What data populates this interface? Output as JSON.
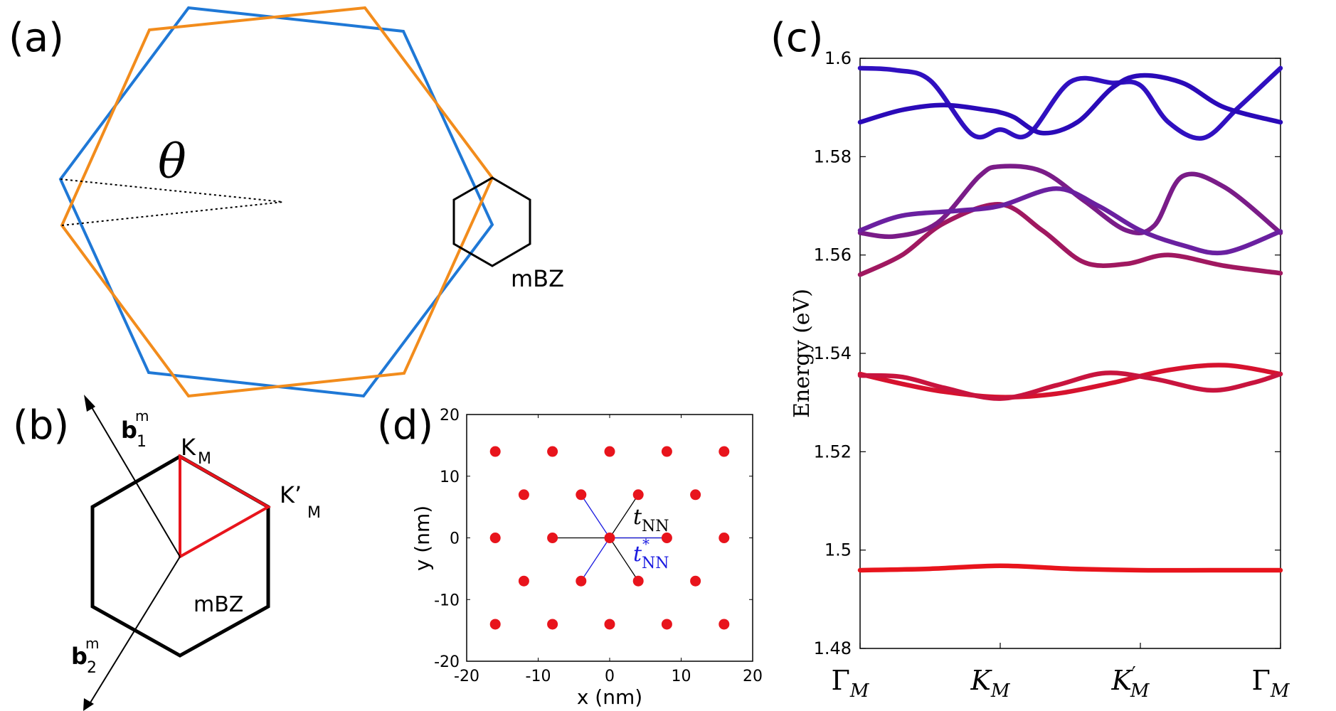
{
  "panel_labels": {
    "a": "(a)",
    "b": "(b)",
    "c": "(c)",
    "d": "(d)"
  },
  "colors": {
    "blue": "#1f78d6",
    "orange": "#f28c1c",
    "red": "#e8141c",
    "black": "#000000"
  },
  "panel_a": {
    "theta_label": "θ",
    "mbz_label": "mBZ"
  },
  "panel_b": {
    "b1_label": "b",
    "b1_sup": "m",
    "b1_sub": "1",
    "b2_label": "b",
    "b2_sup": "m",
    "b2_sub": "2",
    "km_label": "K",
    "km_sub": "M",
    "kmp_label": "K’",
    "kmp_sub": "M",
    "mbz_label": "mBZ"
  },
  "panel_d": {
    "xlabel": "x (nm)",
    "ylabel": "y (nm)",
    "tnn_label": "t",
    "tnn_sub": "NN",
    "tnn_star_label": "t",
    "tnn_star_sup": "*",
    "tnn_star_sub": "NN",
    "xticks": [
      "-20",
      "-10",
      "0",
      "10",
      "20"
    ],
    "yticks": [
      "20",
      "10",
      "0",
      "-10",
      "-20"
    ]
  },
  "chart_data": [
    {
      "type": "scatter",
      "panel": "d",
      "xlabel": "x (nm)",
      "ylabel": "y (nm)",
      "xlim": [
        -20,
        20
      ],
      "ylim": [
        -20,
        20
      ],
      "points": [
        [
          -16,
          14
        ],
        [
          -8,
          14
        ],
        [
          0,
          14
        ],
        [
          8,
          14
        ],
        [
          16,
          14
        ],
        [
          -12,
          7
        ],
        [
          -4,
          7
        ],
        [
          4,
          7
        ],
        [
          12,
          7
        ],
        [
          -16,
          0
        ],
        [
          -8,
          0
        ],
        [
          0,
          0
        ],
        [
          8,
          0
        ],
        [
          16,
          0
        ],
        [
          -12,
          -7
        ],
        [
          -4,
          -7
        ],
        [
          4,
          -7
        ],
        [
          12,
          -7
        ],
        [
          -16,
          -14
        ],
        [
          -8,
          -14
        ],
        [
          0,
          -14
        ],
        [
          8,
          -14
        ],
        [
          16,
          -14
        ]
      ]
    },
    {
      "type": "line",
      "panel": "c",
      "title": "",
      "ylabel": "Energy (eV)",
      "ylim": [
        1.48,
        1.6
      ],
      "yticks": [
        "1.6",
        "1.58",
        "1.56",
        "1.54",
        "1.52",
        "1.5",
        "1.48"
      ],
      "xticks": [
        {
          "main": "Γ",
          "sub": "M",
          "prime": ""
        },
        {
          "main": "K",
          "sub": "M",
          "prime": ""
        },
        {
          "main": "K",
          "sub": "M",
          "prime": "′"
        },
        {
          "main": "Γ",
          "sub": "M",
          "prime": ""
        }
      ],
      "xlim": [
        0,
        3
      ],
      "series": [
        {
          "name": "band1",
          "color": "#e8141c",
          "x": [
            0,
            0.5,
            1.0,
            1.5,
            2.0,
            2.5,
            3.0
          ],
          "values": [
            1.4959,
            1.4962,
            1.4968,
            1.4962,
            1.4959,
            1.4959,
            1.4959
          ]
        },
        {
          "name": "band2",
          "color": "#d6122e",
          "x": [
            0,
            0.3,
            0.6,
            1.0,
            1.4,
            1.8,
            2.2,
            2.6,
            3.0
          ],
          "values": [
            1.5358,
            1.5338,
            1.5322,
            1.5311,
            1.5318,
            1.534,
            1.5366,
            1.5376,
            1.5358
          ]
        },
        {
          "name": "band3",
          "color": "#c8143e",
          "x": [
            0,
            0.3,
            0.6,
            1.0,
            1.4,
            1.75,
            2.1,
            2.5,
            2.8,
            3.0
          ],
          "values": [
            1.5355,
            1.5352,
            1.533,
            1.5308,
            1.5335,
            1.536,
            1.5348,
            1.5325,
            1.534,
            1.5358
          ]
        },
        {
          "name": "band4",
          "color": "#a01860",
          "x": [
            0,
            0.3,
            0.6,
            1.0,
            1.3,
            1.6,
            1.9,
            2.2,
            2.6,
            3.0
          ],
          "values": [
            1.556,
            1.56,
            1.5665,
            1.5703,
            1.565,
            1.5585,
            1.5582,
            1.56,
            1.5578,
            1.5563
          ]
        },
        {
          "name": "band5",
          "color": "#7a1c88",
          "x": [
            0,
            0.25,
            0.55,
            0.85,
            1.0,
            1.3,
            1.6,
            1.9,
            2.1,
            2.3,
            2.6,
            3.0
          ],
          "values": [
            1.5645,
            1.5638,
            1.5665,
            1.576,
            1.578,
            1.577,
            1.571,
            1.565,
            1.566,
            1.576,
            1.5738,
            1.5645
          ]
        },
        {
          "name": "band6",
          "color": "#6a20a0",
          "x": [
            0,
            0.3,
            0.7,
            1.0,
            1.4,
            1.7,
            2.0,
            2.3,
            2.6,
            3.0
          ],
          "values": [
            1.565,
            1.568,
            1.569,
            1.57,
            1.5735,
            1.57,
            1.565,
            1.562,
            1.5605,
            1.5648
          ]
        },
        {
          "name": "band7",
          "color": "#3010c0",
          "x": [
            0,
            0.25,
            0.5,
            0.8,
            1.0,
            1.2,
            1.5,
            1.8,
            2.0,
            2.2,
            2.45,
            2.7,
            3.0
          ],
          "values": [
            1.598,
            1.5976,
            1.5955,
            1.5845,
            1.5855,
            1.5845,
            1.5952,
            1.595,
            1.5945,
            1.587,
            1.5838,
            1.59,
            1.598
          ]
        },
        {
          "name": "band8",
          "color": "#2a0ab8",
          "x": [
            0,
            0.3,
            0.6,
            0.9,
            1.0,
            1.1,
            1.3,
            1.55,
            1.8,
            2.0,
            2.3,
            2.6,
            3.0
          ],
          "values": [
            1.587,
            1.5895,
            1.5905,
            1.5895,
            1.589,
            1.588,
            1.5848,
            1.587,
            1.594,
            1.5965,
            1.595,
            1.59,
            1.587
          ]
        }
      ]
    }
  ]
}
